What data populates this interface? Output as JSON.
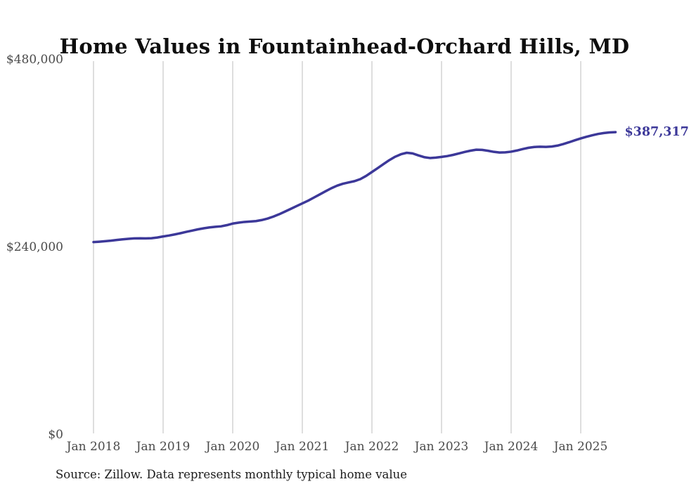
{
  "chart": {
    "title": "Home Values in Fountainhead-Orchard Hills, MD",
    "latest_value_label": "$387,317",
    "source_note": "Source: Zillow. Data represents monthly typical home value",
    "accent_color": "#3c3899",
    "gridline_color": "#bdbdbd",
    "tick_label_color": "#4a4a4a",
    "background_color": "#ffffff"
  },
  "chart_data": {
    "type": "line",
    "title": "Home Values in Fountainhead-Orchard Hills, MD",
    "xlabel": "",
    "ylabel": "",
    "ylim": [
      0,
      480000
    ],
    "grid": "vertical-only",
    "legend": "none",
    "x_unit": "month",
    "x_first": "2018-01",
    "x_last": "2025-07",
    "x_ticks": [
      "Jan 2018",
      "Jan 2019",
      "Jan 2020",
      "Jan 2021",
      "Jan 2022",
      "Jan 2023",
      "Jan 2024",
      "Jan 2025"
    ],
    "y_ticks": [
      {
        "label": "$480,000",
        "value": 480000
      },
      {
        "label": "$240,000",
        "value": 240000
      },
      {
        "label": "$0",
        "value": 0
      }
    ],
    "annotations": [
      {
        "text": "$387,317",
        "attach": "last-point"
      }
    ],
    "series": [
      {
        "name": "Monthly typical home value",
        "values": [
          246600,
          247100,
          247700,
          248400,
          249300,
          250100,
          250800,
          251300,
          251500,
          251400,
          251600,
          252500,
          253800,
          255000,
          256400,
          258000,
          259700,
          261300,
          262900,
          264300,
          265400,
          266200,
          266800,
          268300,
          270300,
          271500,
          272400,
          272900,
          273500,
          274800,
          276700,
          279200,
          282200,
          285600,
          289100,
          292600,
          296100,
          299600,
          303600,
          307600,
          311600,
          315500,
          318800,
          321300,
          323000,
          324600,
          327200,
          331300,
          336300,
          341300,
          346500,
          351500,
          355800,
          359000,
          360900,
          360100,
          357600,
          355300,
          354200,
          354700,
          355600,
          356700,
          358200,
          360100,
          362000,
          363600,
          364800,
          364600,
          363500,
          362100,
          361200,
          361500,
          362300,
          363800,
          365700,
          367300,
          368300,
          368700,
          368400,
          368900,
          370100,
          372100,
          374400,
          376900,
          379300,
          381400,
          383300,
          385000,
          386200,
          387000,
          387317
        ]
      }
    ]
  }
}
